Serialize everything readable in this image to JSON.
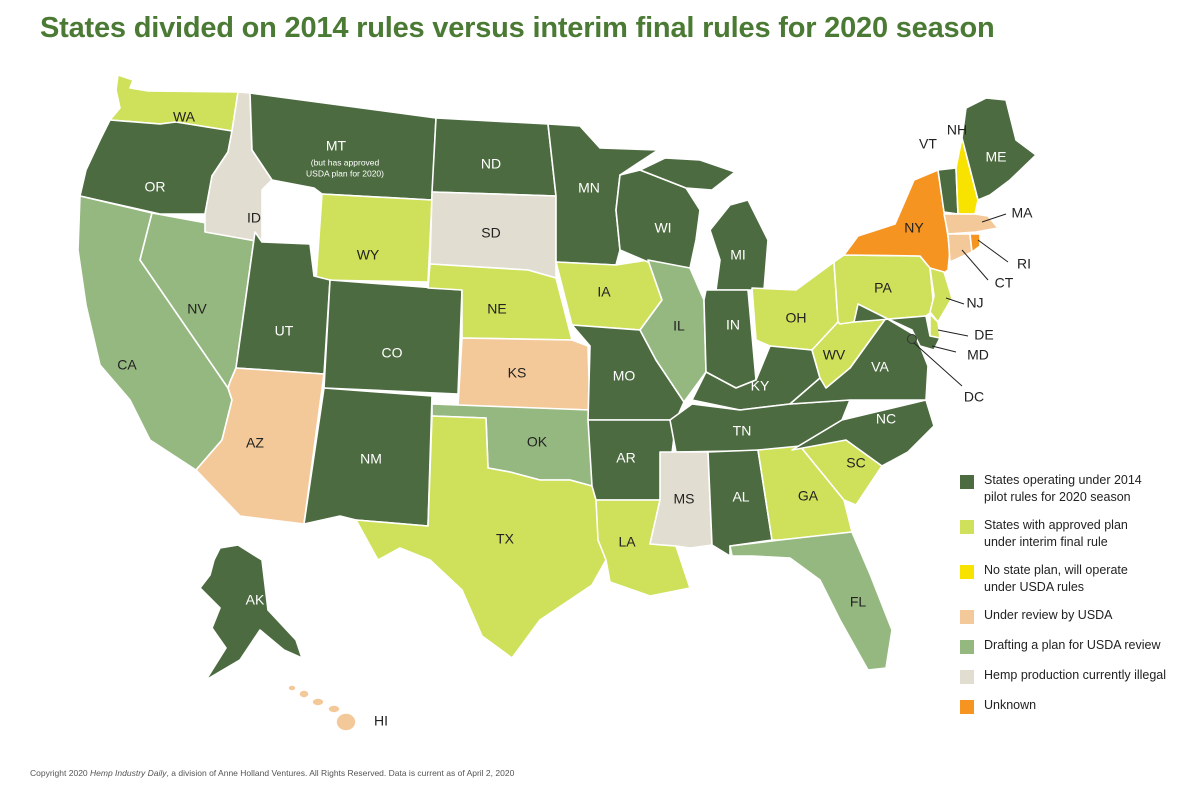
{
  "title": "States divided on 2014 rules versus interim final rules for 2020 season",
  "colors": {
    "pilot_2014": "#4d6b40",
    "approved_interim": "#cfe05a",
    "no_plan_usda": "#f7e200",
    "under_review": "#f4c99a",
    "drafting": "#95b880",
    "illegal": "#e2ddd1",
    "unknown": "#f59420",
    "label_dark": "#ffffff",
    "label_light": "#222222"
  },
  "legend": [
    {
      "category": "pilot_2014",
      "label": "States operating under 2014\npilot rules for 2020 season"
    },
    {
      "category": "approved_interim",
      "label": "States with approved plan\nunder interim final rule"
    },
    {
      "category": "no_plan_usda",
      "label": "No state plan, will operate\nunder USDA rules"
    },
    {
      "category": "under_review",
      "label": "Under review by USDA"
    },
    {
      "category": "drafting",
      "label": "Drafting a plan for USDA review"
    },
    {
      "category": "illegal",
      "label": "Hemp production currently illegal"
    },
    {
      "category": "unknown",
      "label": "Unknown"
    }
  ],
  "states": [
    {
      "abbr": "WA",
      "category": "approved_interim"
    },
    {
      "abbr": "OR",
      "category": "pilot_2014"
    },
    {
      "abbr": "CA",
      "category": "drafting"
    },
    {
      "abbr": "NV",
      "category": "drafting"
    },
    {
      "abbr": "ID",
      "category": "illegal"
    },
    {
      "abbr": "MT",
      "category": "pilot_2014",
      "note": "(but has approved\nUSDA plan for 2020)"
    },
    {
      "abbr": "WY",
      "category": "approved_interim"
    },
    {
      "abbr": "UT",
      "category": "pilot_2014"
    },
    {
      "abbr": "AZ",
      "category": "under_review"
    },
    {
      "abbr": "CO",
      "category": "pilot_2014"
    },
    {
      "abbr": "NM",
      "category": "pilot_2014"
    },
    {
      "abbr": "ND",
      "category": "pilot_2014"
    },
    {
      "abbr": "SD",
      "category": "illegal"
    },
    {
      "abbr": "NE",
      "category": "approved_interim"
    },
    {
      "abbr": "KS",
      "category": "under_review"
    },
    {
      "abbr": "OK",
      "category": "drafting"
    },
    {
      "abbr": "TX",
      "category": "approved_interim"
    },
    {
      "abbr": "MN",
      "category": "pilot_2014"
    },
    {
      "abbr": "IA",
      "category": "approved_interim"
    },
    {
      "abbr": "MO",
      "category": "pilot_2014"
    },
    {
      "abbr": "AR",
      "category": "pilot_2014"
    },
    {
      "abbr": "LA",
      "category": "approved_interim"
    },
    {
      "abbr": "WI",
      "category": "pilot_2014"
    },
    {
      "abbr": "IL",
      "category": "drafting"
    },
    {
      "abbr": "MI",
      "category": "pilot_2014"
    },
    {
      "abbr": "IN",
      "category": "pilot_2014"
    },
    {
      "abbr": "OH",
      "category": "approved_interim"
    },
    {
      "abbr": "KY",
      "category": "pilot_2014"
    },
    {
      "abbr": "TN",
      "category": "pilot_2014"
    },
    {
      "abbr": "MS",
      "category": "illegal"
    },
    {
      "abbr": "AL",
      "category": "pilot_2014"
    },
    {
      "abbr": "GA",
      "category": "approved_interim"
    },
    {
      "abbr": "FL",
      "category": "drafting"
    },
    {
      "abbr": "SC",
      "category": "approved_interim"
    },
    {
      "abbr": "NC",
      "category": "pilot_2014"
    },
    {
      "abbr": "VA",
      "category": "pilot_2014"
    },
    {
      "abbr": "WV",
      "category": "approved_interim"
    },
    {
      "abbr": "PA",
      "category": "approved_interim"
    },
    {
      "abbr": "NY",
      "category": "unknown"
    },
    {
      "abbr": "VT",
      "category": "pilot_2014"
    },
    {
      "abbr": "NH",
      "category": "no_plan_usda"
    },
    {
      "abbr": "ME",
      "category": "pilot_2014"
    },
    {
      "abbr": "MA",
      "category": "under_review"
    },
    {
      "abbr": "RI",
      "category": "unknown"
    },
    {
      "abbr": "CT",
      "category": "under_review"
    },
    {
      "abbr": "NJ",
      "category": "approved_interim"
    },
    {
      "abbr": "DE",
      "category": "approved_interim"
    },
    {
      "abbr": "MD",
      "category": "pilot_2014"
    },
    {
      "abbr": "DC",
      "category": "pilot_2014"
    },
    {
      "abbr": "AK",
      "category": "pilot_2014"
    },
    {
      "abbr": "HI",
      "category": "under_review"
    }
  ],
  "footer": {
    "prefix": "Copyright 2020 ",
    "publication": "Hemp Industry Daily",
    "suffix": ", a division of Anne Holland Ventures. All Rights Reserved. Data is current as of April 2, 2020"
  }
}
